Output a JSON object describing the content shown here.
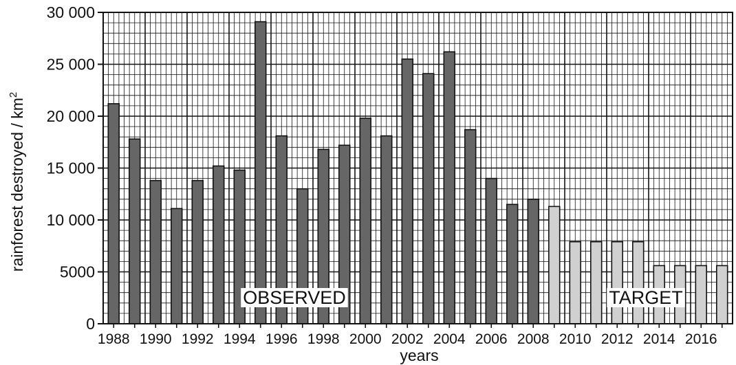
{
  "chart_data": {
    "type": "bar",
    "xlabel": "years",
    "ylabel": "rainforest destroyed / km",
    "ylabel_superscript": "2",
    "ylim": [
      0,
      30000
    ],
    "y_ticks": [
      0,
      5000,
      10000,
      15000,
      20000,
      25000,
      30000
    ],
    "y_tick_labels": [
      "0",
      "5000",
      "10 000",
      "15 000",
      "20 000",
      "25 000",
      "30 000"
    ],
    "categories": [
      "1988",
      "1989",
      "1990",
      "1991",
      "1992",
      "1993",
      "1994",
      "1995",
      "1996",
      "1997",
      "1998",
      "1999",
      "2000",
      "2001",
      "2002",
      "2003",
      "2004",
      "2005",
      "2006",
      "2007",
      "2008",
      "2009",
      "2010",
      "2011",
      "2012",
      "2013",
      "2014",
      "2015",
      "2016",
      "2017"
    ],
    "x_tick_labels": [
      "1988",
      "1990",
      "1992",
      "1994",
      "1996",
      "1998",
      "2000",
      "2002",
      "2004",
      "2006",
      "2008",
      "2010",
      "2012",
      "2014",
      "2016"
    ],
    "series": [
      {
        "name": "OBSERVED",
        "color": "#666666",
        "values": [
          21200,
          17800,
          13800,
          11100,
          13800,
          15200,
          14800,
          29100,
          18100,
          13000,
          16800,
          17200,
          19800,
          18100,
          25500,
          24100,
          26200,
          18700,
          14000,
          11500,
          12000,
          null,
          null,
          null,
          null,
          null,
          null,
          null,
          null,
          null
        ]
      },
      {
        "name": "TARGET",
        "color": "#d0d0d0",
        "values": [
          null,
          null,
          null,
          null,
          null,
          null,
          null,
          null,
          null,
          null,
          null,
          null,
          null,
          null,
          null,
          null,
          null,
          null,
          null,
          null,
          null,
          11300,
          7900,
          7900,
          7900,
          7900,
          5600,
          5600,
          5600,
          5600
        ]
      }
    ],
    "annotations": [
      "OBSERVED",
      "TARGET"
    ],
    "grid": true
  }
}
